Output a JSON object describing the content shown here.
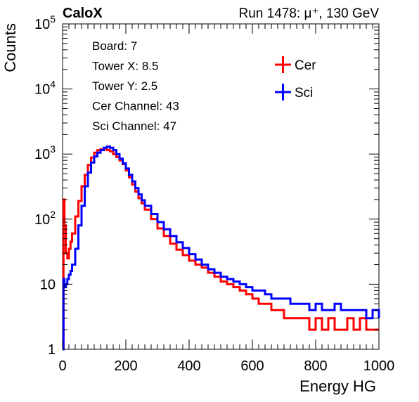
{
  "chart_data": {
    "type": "line",
    "header_left": "CaloX",
    "header_right": "Run 1478:   μ⁺, 130 GeV",
    "xlabel": "Energy HG",
    "ylabel": "Counts",
    "xlim": [
      0,
      1000
    ],
    "ylim": [
      1,
      100000
    ],
    "y_scale": "log",
    "x_ticks": [
      "0",
      "200",
      "400",
      "600",
      "800",
      "1000"
    ],
    "y_ticks": [
      {
        "value": 1,
        "label": "1"
      },
      {
        "value": 10,
        "label": "10"
      },
      {
        "value": 100,
        "base": "10",
        "exp": "2"
      },
      {
        "value": 1000,
        "base": "10",
        "exp": "3"
      },
      {
        "value": 10000,
        "base": "10",
        "exp": "4"
      },
      {
        "value": 100000,
        "base": "10",
        "exp": "5"
      }
    ],
    "info_lines": [
      "Board: 7",
      "Tower X: 8.5",
      "Tower Y: 2.5",
      "Cer Channel: 43",
      "Sci Channel: 47"
    ],
    "legend_placement": "top-right",
    "series": [
      {
        "name": "Cer",
        "color": "#ff0000",
        "x": [
          0,
          3,
          6,
          10,
          15,
          20,
          25,
          30,
          40,
          50,
          60,
          70,
          80,
          90,
          100,
          110,
          120,
          130,
          140,
          150,
          160,
          170,
          180,
          190,
          200,
          210,
          220,
          230,
          240,
          250,
          260,
          280,
          300,
          320,
          340,
          360,
          380,
          400,
          420,
          440,
          460,
          480,
          500,
          520,
          540,
          560,
          580,
          600,
          620,
          640,
          660,
          680,
          700,
          720,
          740,
          760,
          780,
          800,
          820,
          840,
          860,
          880,
          900,
          920,
          940,
          960,
          980,
          1000
        ],
        "y": [
          1,
          200,
          80,
          30,
          25,
          35,
          45,
          60,
          110,
          190,
          320,
          480,
          680,
          880,
          1050,
          1150,
          1180,
          1200,
          1150,
          1100,
          1000,
          900,
          800,
          700,
          560,
          440,
          340,
          265,
          210,
          175,
          140,
          100,
          72,
          55,
          42,
          34,
          28,
          23,
          20,
          18,
          15,
          13,
          11,
          10,
          9,
          8,
          7,
          6,
          5,
          5,
          4,
          4,
          3,
          3,
          3,
          3,
          2,
          3,
          2,
          3,
          2,
          2,
          3,
          2,
          3,
          2,
          2,
          2
        ]
      },
      {
        "name": "Sci",
        "color": "#0000ff",
        "x": [
          0,
          3,
          6,
          10,
          15,
          20,
          25,
          30,
          40,
          50,
          60,
          70,
          80,
          90,
          100,
          110,
          120,
          130,
          140,
          150,
          160,
          170,
          180,
          190,
          200,
          210,
          220,
          230,
          240,
          250,
          260,
          280,
          300,
          320,
          340,
          360,
          380,
          400,
          420,
          440,
          460,
          480,
          500,
          520,
          540,
          560,
          580,
          600,
          620,
          640,
          660,
          680,
          700,
          720,
          740,
          760,
          780,
          800,
          820,
          840,
          860,
          880,
          900,
          920,
          940,
          960,
          980,
          1000
        ],
        "y": [
          1,
          12,
          9,
          10,
          12,
          14,
          16,
          20,
          35,
          80,
          160,
          320,
          520,
          740,
          920,
          1050,
          1150,
          1250,
          1300,
          1250,
          1150,
          1000,
          850,
          720,
          600,
          480,
          380,
          300,
          240,
          195,
          160,
          120,
          90,
          70,
          55,
          44,
          36,
          29,
          24,
          20,
          17,
          15,
          13,
          12,
          11,
          10,
          9,
          8,
          8,
          7,
          6,
          6,
          6,
          5,
          5,
          5,
          4,
          5,
          4,
          4,
          5,
          4,
          4,
          4,
          4,
          3,
          4,
          3
        ]
      }
    ]
  }
}
